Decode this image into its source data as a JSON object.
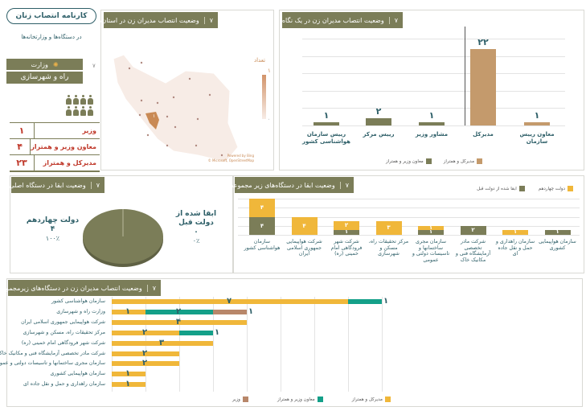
{
  "brand": {
    "title": "کارنامه انتصاب زنان",
    "subtitle": "در دستگاه‌ها و وزارتخانه‌ها"
  },
  "ministry": {
    "label": "وزارت",
    "name": "راه و شهرسازی",
    "badge": "٧"
  },
  "summary_table": [
    {
      "role": "وزیر",
      "count": "١"
    },
    {
      "role": "معاون وزیر و همتراز",
      "count": "۴"
    },
    {
      "role": "مدیرکل و همتراز",
      "count": "٢٣"
    }
  ],
  "colors": {
    "olive": "#7b7d58",
    "tan": "#c49a6c",
    "yellow": "#f0b73a",
    "teal": "#14a089",
    "brown": "#b8876a",
    "red": "#c0392b"
  },
  "map_panel": {
    "num": "٧",
    "title": "وضعیت انتصاب مدیران زن در استان‌ها",
    "legend_title": "تعداد",
    "legend_max": "١",
    "legend_min": "٠",
    "region_value": "١",
    "credit1": "Powered by Bing",
    "credit2": "© Microsoft, OpenStreetMap"
  },
  "glance_panel": {
    "num": "٧",
    "title": "وضعیت انتصاب مدیران زن در یک نگاه"
  },
  "pie_panel": {
    "num": "٧",
    "title": "وضعیت ابقا در دستگاه اصلی"
  },
  "retention_panel": {
    "num": "٧",
    "title": "وضعیت ابقا در دستگاه‌های زیر مجموعه"
  },
  "bottom_panel": {
    "num": "٧",
    "title": "وضعیت انتصاب مدیران زن در دستگاه‌های زیرمجموعه"
  },
  "chart_data": [
    {
      "type": "bar",
      "title": "وضعیت انتصاب مدیران زن در یک نگاه",
      "ylim": [
        0,
        25
      ],
      "categories": [
        "معاون رییس سازمان",
        "مدیرکل",
        "مشاور وزیر",
        "رییس مرکز",
        "رییس سازمان هواشناسی کشور"
      ],
      "values": [
        1,
        22,
        1,
        2,
        1
      ],
      "series_of": [
        "مدیرکل و همتراز",
        "مدیرکل و همتراز",
        "معاون وزیر و همتراز",
        "معاون وزیر و همتراز",
        "معاون وزیر و همتراز"
      ],
      "legend": [
        "مدیرکل و همتراز",
        "معاون وزیر و همتراز"
      ]
    },
    {
      "type": "pie",
      "title": "وضعیت ابقا در دستگاه اصلی",
      "slices": [
        {
          "label": "دولت چهاردهم",
          "value": 4,
          "value_label": "۴",
          "pct_label": "٪١٠٠"
        },
        {
          "label": "ابقا شده از دولت قبل",
          "value": 0,
          "value_label": "٠",
          "pct_label": "٪٠"
        }
      ]
    },
    {
      "type": "bar",
      "stacked": true,
      "title": "وضعیت ابقا در دستگاه‌های زیر مجموعه",
      "categories": [
        "سازمان هواشناسی کشور",
        "شرکت هواپیمایی جمهوری اسلامی ایران",
        "شرکت شهر فرودگاهی امام خمینی (ره)",
        "مرکز تحقیقات راه، مسکن و شهرسازی",
        "سازمان مجری ساختمانها و تاسیسات دولتی و عمومی",
        "شرکت مادر تخصصی آزمایشگاه فنی و مکانیک خاک",
        "سازمان راهداری و حمل و نقل جاده ای",
        "سازمان هواپیمایی کشوری"
      ],
      "series": [
        {
          "name": "ابقا شده از دولت قبل",
          "values": [
            4,
            0,
            1,
            0,
            1,
            2,
            0,
            1
          ]
        },
        {
          "name": "دولت چهاردهم",
          "values": [
            4,
            4,
            2,
            3,
            1,
            0,
            1,
            0
          ]
        }
      ]
    },
    {
      "type": "bar",
      "orientation": "horizontal",
      "stacked": true,
      "title": "وضعیت انتصاب مدیران زن در دستگاه‌های زیرمجموعه",
      "xlim": [
        0,
        8
      ],
      "categories": [
        "سازمان هواشناسی کشور",
        "وزارت راه و شهرسازی",
        "شرکت هواپیمایی جمهوری اسلامی ایران",
        "مرکز تحقیقات راه، مسکن و شهرسازی",
        "شرکت شهر فرودگاهی امام خمینی (ره)",
        "شرکت مادر تخصصی آزمایشگاه فنی و مکانیک خاک",
        "سازمان مجری ساختمانها و تاسیسات دولتی و عمومی",
        "سازمان هواپیمایی کشوری",
        "سازمان راهداری و حمل و نقل جاده ای"
      ],
      "series": [
        {
          "name": "مدیرکل و همتراز",
          "values": [
            7,
            1,
            4,
            2,
            3,
            2,
            2,
            1,
            1
          ]
        },
        {
          "name": "معاون وزیر و همتراز",
          "values": [
            1,
            2,
            0,
            1,
            0,
            0,
            0,
            0,
            0
          ]
        },
        {
          "name": "وزیر",
          "values": [
            0,
            1,
            0,
            0,
            0,
            0,
            0,
            0,
            0
          ]
        }
      ]
    }
  ]
}
